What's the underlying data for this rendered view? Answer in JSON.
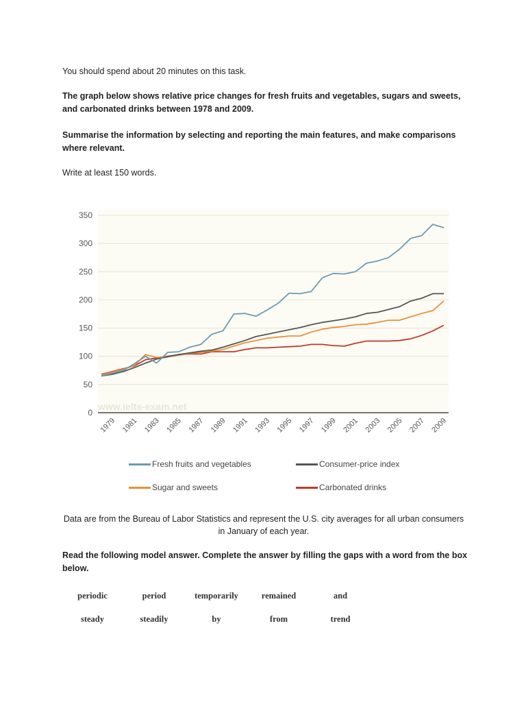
{
  "instructions": {
    "time": "You should spend about 20 minutes on this task.",
    "task": "The graph below shows relative price changes for fresh fruits and vegetables, sugars and sweets, and carbonated drinks between 1978 and 2009.",
    "summarise": "Summarise the information by selecting and reporting the main features, and make comparisons where relevant.",
    "words": "Write at least 150 words."
  },
  "chart_data": {
    "type": "line",
    "watermark": "www.ielts-exam.net",
    "x": [
      1978,
      1979,
      1980,
      1981,
      1982,
      1983,
      1984,
      1985,
      1986,
      1987,
      1988,
      1989,
      1990,
      1991,
      1992,
      1993,
      1994,
      1995,
      1996,
      1997,
      1998,
      1999,
      2000,
      2001,
      2002,
      2003,
      2004,
      2005,
      2006,
      2007,
      2008,
      2009
    ],
    "xtick_labels": [
      "1979",
      "1981",
      "1983",
      "1985",
      "1987",
      "1989",
      "1991",
      "1993",
      "1995",
      "1997",
      "1999",
      "2001",
      "2003",
      "2005",
      "2007",
      "2009"
    ],
    "ylim": [
      0,
      350
    ],
    "yticks": [
      "0",
      "50",
      "100",
      "150",
      "200",
      "250",
      "300",
      "350"
    ],
    "grid": true,
    "legend_position": "bottom",
    "series": [
      {
        "name": "Fresh fruits and vegetables",
        "color": "#6b9ab5",
        "values": [
          65,
          70,
          75,
          87,
          100,
          88,
          107,
          108,
          116,
          121,
          139,
          145,
          175,
          176,
          171,
          182,
          194,
          212,
          211,
          215,
          239,
          247,
          246,
          250,
          265,
          269,
          275,
          290,
          309,
          314,
          334,
          328
        ]
      },
      {
        "name": "Consumer-price index",
        "color": "#555555",
        "values": [
          65,
          68,
          73,
          80,
          88,
          95,
          99,
          103,
          106,
          109,
          111,
          116,
          122,
          128,
          135,
          139,
          143,
          147,
          151,
          156,
          160,
          163,
          166,
          170,
          176,
          178,
          183,
          188,
          198,
          203,
          211,
          211
        ]
      },
      {
        "name": "Sugar and sweets",
        "color": "#e8913a",
        "values": [
          67,
          72,
          77,
          84,
          103,
          98,
          99,
          102,
          105,
          107,
          109,
          112,
          118,
          124,
          128,
          132,
          134,
          136,
          136,
          143,
          148,
          151,
          153,
          156,
          157,
          160,
          164,
          164,
          170,
          176,
          181,
          198
        ]
      },
      {
        "name": "Carbonated drinks",
        "color": "#c0392b",
        "values": [
          68,
          73,
          78,
          83,
          94,
          97,
          100,
          103,
          104,
          104,
          108,
          108,
          108,
          112,
          115,
          115,
          116,
          117,
          118,
          121,
          121,
          119,
          118,
          123,
          127,
          127,
          127,
          128,
          131,
          137,
          145,
          155
        ]
      }
    ]
  },
  "source_note": {
    "line1": "Data are from the Bureau of Labor Statistics and represent the U.S. city averages for all urban consumers",
    "line2": "in January of each year."
  },
  "exercise": {
    "prompt": "Read the following model answer. Complete the answer by filling the gaps with a word from the box below.",
    "words_row1": [
      "periodic",
      "period",
      "temporarily",
      "remained",
      "and"
    ],
    "words_row2": [
      "steady",
      "steadily",
      "by",
      "from",
      "trend"
    ]
  }
}
